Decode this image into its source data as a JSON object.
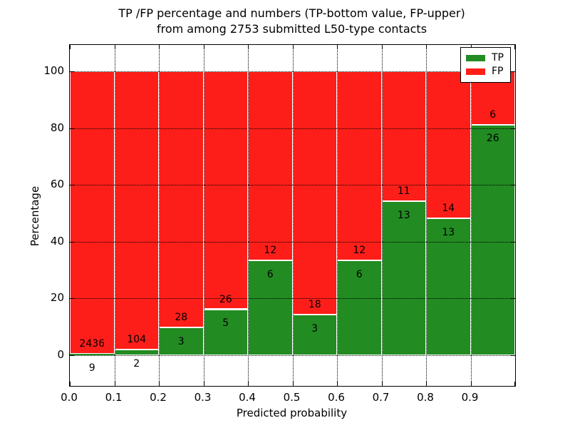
{
  "title": {
    "line1": "TP /FP percentage and numbers (TP-bottom value, FP-upper)",
    "line2": "from among 2753 submitted L50-type contacts"
  },
  "axes": {
    "xlabel": "Predicted probability",
    "ylabel": "Percentage",
    "x_tick_labels": [
      "0.0",
      "0.1",
      "0.2",
      "0.3",
      "0.4",
      "0.5",
      "0.6",
      "0.7",
      "0.8",
      "0.9"
    ],
    "y_tick_labels": [
      "0",
      "20",
      "40",
      "60",
      "80",
      "100"
    ],
    "y_tick_values": [
      0,
      20,
      40,
      60,
      80,
      100
    ]
  },
  "legend": {
    "items": [
      {
        "label": "TP",
        "color": "#228B22"
      },
      {
        "label": "FP",
        "color": "#FE1E19"
      }
    ]
  },
  "chart_data": {
    "type": "bar",
    "stacked": true,
    "normalized_to_percent": true,
    "title": "TP /FP percentage and numbers (TP-bottom value, FP-upper) from among 2753 submitted L50-type contacts",
    "xlabel": "Predicted probability",
    "ylabel": "Percentage",
    "total_contacts": 2753,
    "bin_edges": [
      0.0,
      0.1,
      0.2,
      0.3,
      0.4,
      0.5,
      0.6,
      0.7,
      0.8,
      0.9,
      1.0
    ],
    "categories": [
      "0.0-0.1",
      "0.1-0.2",
      "0.2-0.3",
      "0.3-0.4",
      "0.4-0.5",
      "0.5-0.6",
      "0.6-0.7",
      "0.7-0.8",
      "0.8-0.9",
      "0.9-1.0"
    ],
    "series": [
      {
        "name": "TP",
        "color": "#228B22",
        "counts": [
          9,
          2,
          3,
          5,
          6,
          3,
          6,
          13,
          13,
          26
        ]
      },
      {
        "name": "FP",
        "color": "#FE1E19",
        "counts": [
          2436,
          104,
          28,
          26,
          12,
          18,
          12,
          11,
          14,
          6
        ]
      }
    ],
    "tp_percent": [
      0.37,
      1.89,
      9.68,
      16.13,
      33.33,
      14.29,
      33.33,
      54.17,
      48.15,
      81.25
    ],
    "xlim": [
      0.0,
      1.0
    ],
    "ylim": [
      -10.9,
      109.3
    ],
    "grid": true,
    "grid_style": "dotted",
    "legend_position": "upper right"
  }
}
